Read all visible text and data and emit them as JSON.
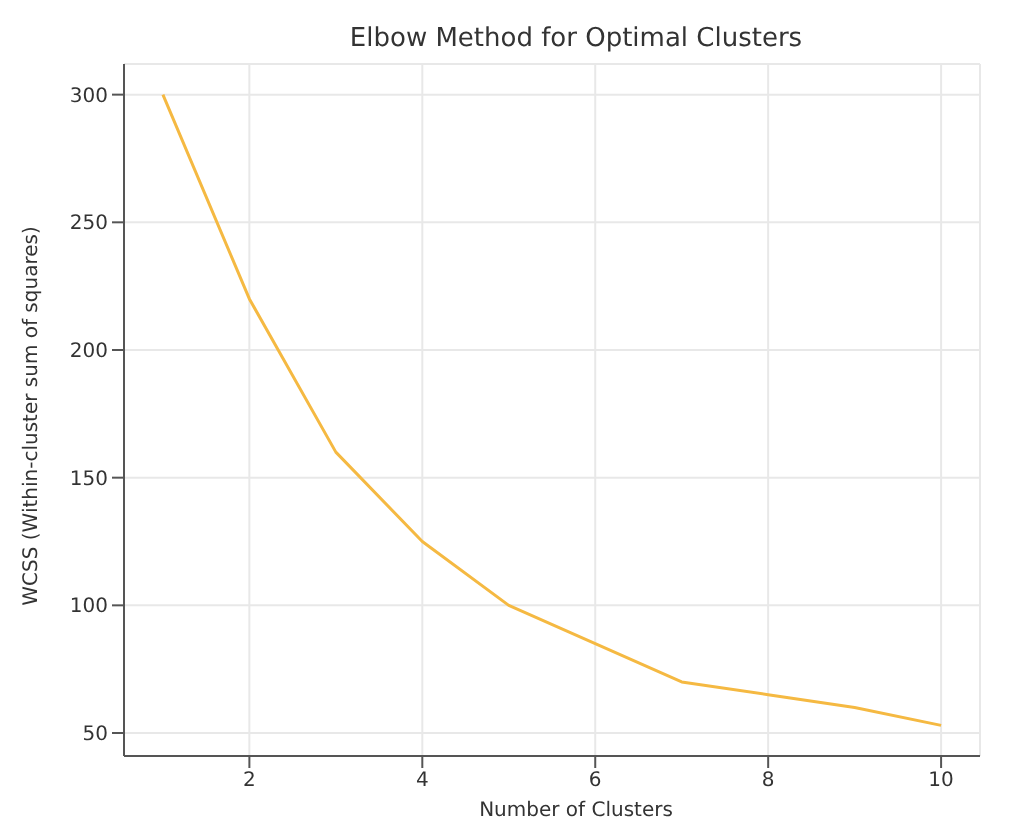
{
  "chart_data": {
    "type": "line",
    "title": "Elbow Method for Optimal Clusters",
    "xlabel": "Number of Clusters",
    "ylabel": "WCSS (Within-cluster sum of squares)",
    "x": [
      1,
      2,
      3,
      4,
      5,
      6,
      7,
      8,
      9,
      10
    ],
    "series": [
      {
        "color": "#f5b942",
        "values": [
          300,
          220,
          160,
          125,
          100,
          85,
          70,
          65,
          60,
          53
        ]
      }
    ],
    "xlim": [
      0.55,
      10.45
    ],
    "xticks": [
      2,
      4,
      6,
      8,
      10
    ],
    "ylim": [
      41,
      312
    ],
    "yticks": [
      50,
      100,
      150,
      200,
      250,
      300
    ],
    "grid": true,
    "marker": "none",
    "line_style": "solid"
  }
}
